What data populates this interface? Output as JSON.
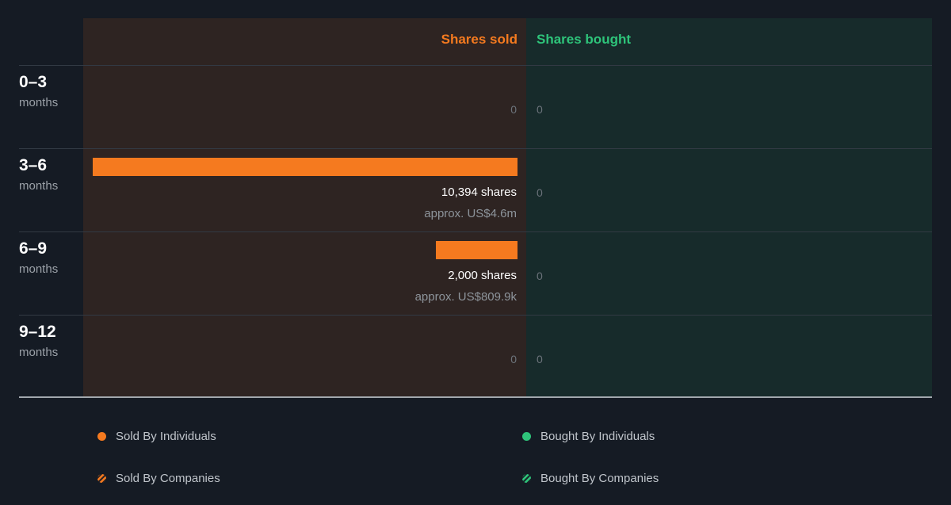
{
  "chart_data": {
    "type": "bar",
    "headers": {
      "sold": "Shares sold",
      "bought": "Shares bought"
    },
    "categories": [
      {
        "range": "0–3",
        "unit": "months"
      },
      {
        "range": "3–6",
        "unit": "months"
      },
      {
        "range": "6–9",
        "unit": "months"
      },
      {
        "range": "9–12",
        "unit": "months"
      }
    ],
    "sold": [
      {
        "shares": 0,
        "label": "0",
        "approx": ""
      },
      {
        "shares": 10394,
        "label": "10,394 shares",
        "approx": "approx. US$4.6m"
      },
      {
        "shares": 2000,
        "label": "2,000 shares",
        "approx": "approx. US$809.9k"
      },
      {
        "shares": 0,
        "label": "0",
        "approx": ""
      }
    ],
    "bought": [
      {
        "shares": 0,
        "label": "0"
      },
      {
        "shares": 0,
        "label": "0"
      },
      {
        "shares": 0,
        "label": "0"
      },
      {
        "shares": 0,
        "label": "0"
      }
    ],
    "legend": [
      {
        "label": "Sold By Individuals",
        "color": "#f57a1f",
        "style": "solid"
      },
      {
        "label": "Bought By Individuals",
        "color": "#2ec47a",
        "style": "solid"
      },
      {
        "label": "Sold By Companies",
        "color": "#f57a1f",
        "style": "striped"
      },
      {
        "label": "Bought By Companies",
        "color": "#2ec47a",
        "style": "striped"
      }
    ]
  }
}
